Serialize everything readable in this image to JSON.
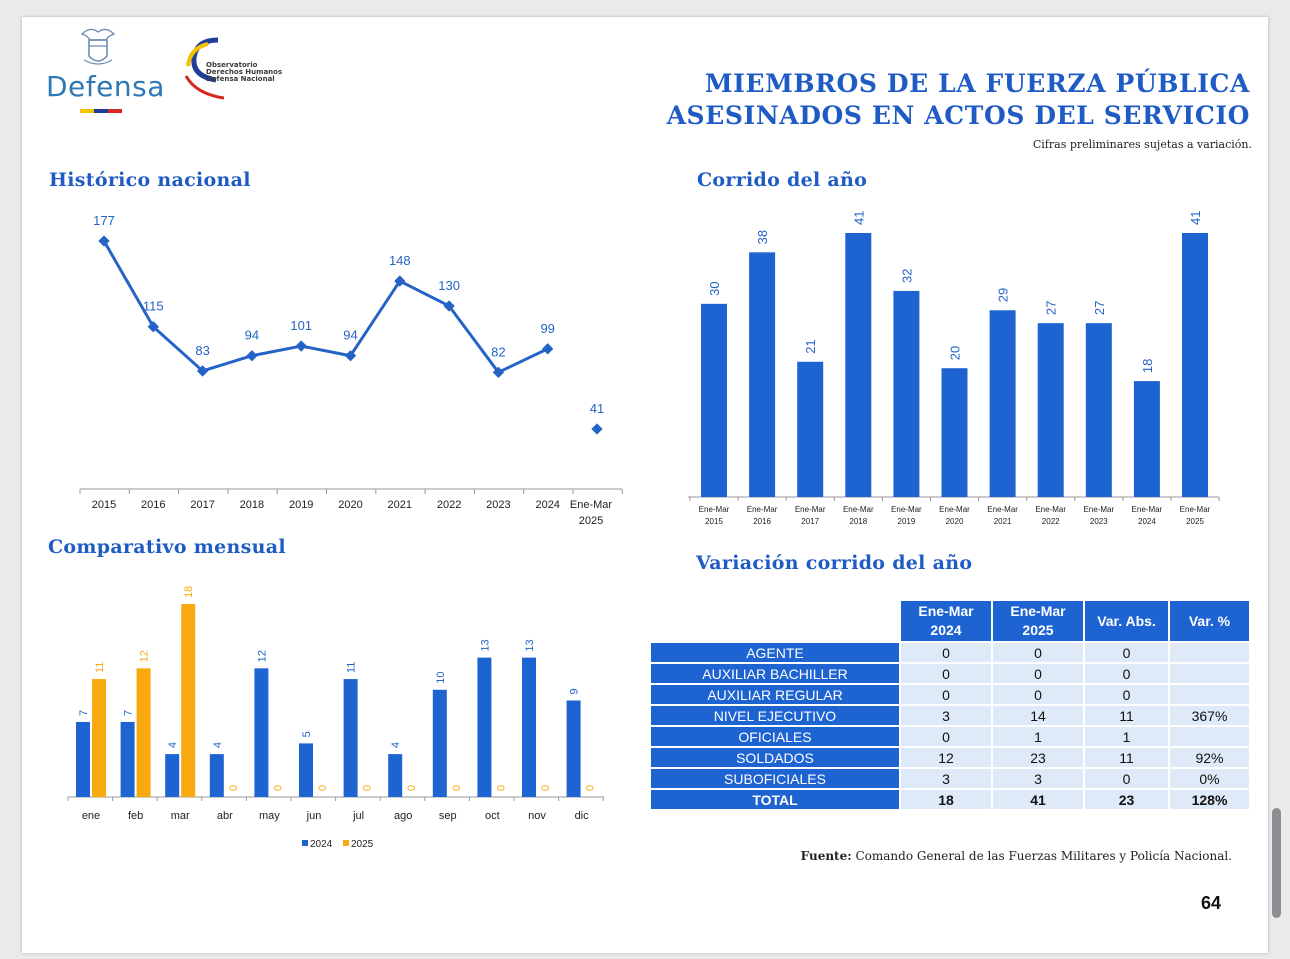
{
  "header": {
    "logo_text": "Defensa",
    "observatory_lines": [
      "Observatorio",
      "Derechos Humanos",
      "Defensa Nacional"
    ],
    "title_line1": "MIEMBROS DE LA FUERZA PÚBLICA",
    "title_line2": "ASESINADOS EN ACTOS DEL SERVICIO",
    "note": "Cifras preliminares sujetas a variación."
  },
  "sections": {
    "historico": "Histórico nacional",
    "corrido": "Corrido del año",
    "comparativo": "Comparativo mensual",
    "variacion": "Variación corrido del año"
  },
  "colors": {
    "blue": "#1e63d2",
    "line": "#2563c6",
    "orange": "#f7a90f",
    "title": "#1f5bc4",
    "flag": [
      "#f5c400",
      "#1e3e9e",
      "#d52b1e"
    ]
  },
  "chart_data": [
    {
      "id": "historico",
      "type": "line",
      "title": "Histórico nacional",
      "categories": [
        "2015",
        "2016",
        "2017",
        "2018",
        "2019",
        "2020",
        "2021",
        "2022",
        "2023",
        "2024",
        "Ene-Mar 2025"
      ],
      "values": [
        177,
        115,
        83,
        94,
        101,
        94,
        148,
        130,
        82,
        99,
        41
      ],
      "note": "last point plotted as isolated marker",
      "ylim": [
        0,
        200
      ]
    },
    {
      "id": "corrido",
      "type": "bar",
      "title": "Corrido del año",
      "categories": [
        "Ene-Mar 2015",
        "Ene-Mar 2016",
        "Ene-Mar 2017",
        "Ene-Mar 2018",
        "Ene-Mar 2019",
        "Ene-Mar 2020",
        "Ene-Mar 2021",
        "Ene-Mar 2022",
        "Ene-Mar 2023",
        "Ene-Mar 2024",
        "Ene-Mar 2025"
      ],
      "values": [
        30,
        38,
        21,
        41,
        32,
        20,
        29,
        27,
        27,
        18,
        41
      ],
      "ylim": [
        0,
        45
      ]
    },
    {
      "id": "comparativo",
      "type": "bar",
      "title": "Comparativo mensual",
      "categories": [
        "ene",
        "feb",
        "mar",
        "abr",
        "may",
        "jun",
        "jul",
        "ago",
        "sep",
        "oct",
        "nov",
        "dic"
      ],
      "series": [
        {
          "name": "2024",
          "values": [
            7,
            7,
            4,
            4,
            12,
            5,
            11,
            4,
            10,
            13,
            13,
            9
          ]
        },
        {
          "name": "2025",
          "values": [
            11,
            12,
            18,
            0,
            0,
            0,
            0,
            0,
            0,
            0,
            0,
            0
          ]
        }
      ],
      "legend": "bottom",
      "ylim": [
        0,
        20
      ]
    },
    {
      "id": "variacion",
      "type": "table",
      "title": "Variación corrido del año",
      "columns": [
        {
          "l1": "Ene-Mar",
          "l2": "2024"
        },
        {
          "l1": "Ene-Mar",
          "l2": "2025"
        },
        {
          "l1": "Var. Abs.",
          "l2": ""
        },
        {
          "l1": "Var. %",
          "l2": ""
        }
      ],
      "rows": [
        {
          "label": "AGENTE",
          "v2024": "0",
          "v2025": "0",
          "abs": "0",
          "pct": ""
        },
        {
          "label": "AUXILIAR BACHILLER",
          "v2024": "0",
          "v2025": "0",
          "abs": "0",
          "pct": ""
        },
        {
          "label": "AUXILIAR REGULAR",
          "v2024": "0",
          "v2025": "0",
          "abs": "0",
          "pct": ""
        },
        {
          "label": "NIVEL EJECUTIVO",
          "v2024": "3",
          "v2025": "14",
          "abs": "11",
          "pct": "367%"
        },
        {
          "label": "OFICIALES",
          "v2024": "0",
          "v2025": "1",
          "abs": "1",
          "pct": ""
        },
        {
          "label": "SOLDADOS",
          "v2024": "12",
          "v2025": "23",
          "abs": "11",
          "pct": "92%"
        },
        {
          "label": "SUBOFICIALES",
          "v2024": "3",
          "v2025": "3",
          "abs": "0",
          "pct": "0%"
        },
        {
          "label": "TOTAL",
          "v2024": "18",
          "v2025": "41",
          "abs": "23",
          "pct": "128%"
        }
      ]
    }
  ],
  "footer": {
    "source_label": "Fuente:",
    "source_text": " Comando General de las Fuerzas Militares y Policía Nacional.",
    "page_number": "64"
  }
}
